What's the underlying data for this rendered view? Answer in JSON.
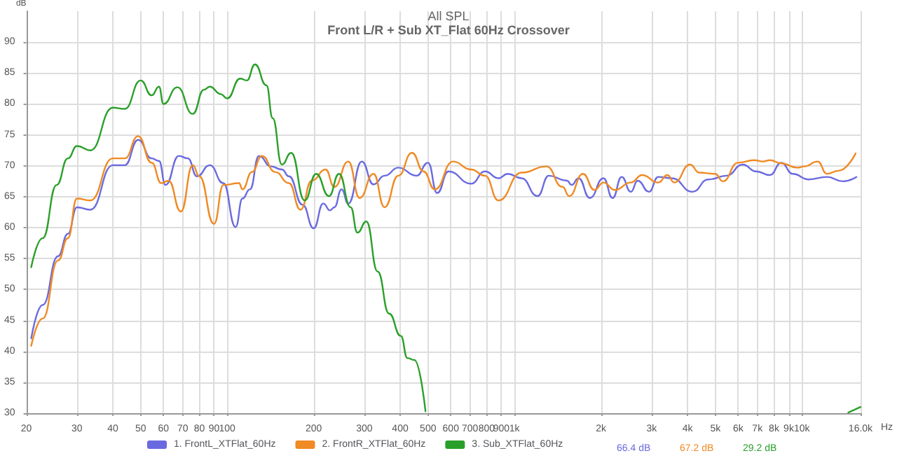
{
  "chart_data": {
    "type": "line",
    "title": "All SPL",
    "subtitle": "Front L/R + Sub XT_Flat 60Hz Crossover",
    "ylabel": "dB",
    "xlim": [
      20,
      16000
    ],
    "ylim": [
      30,
      95
    ],
    "log": "x",
    "grid": true,
    "legend": "bottom",
    "marker": "none",
    "line_style": "solid",
    "xticks": [
      20,
      30,
      40,
      50,
      60,
      70,
      80,
      90,
      100,
      200,
      300,
      400,
      500,
      600,
      700,
      800,
      900,
      {
        "value": 1000,
        "label": "1k"
      },
      {
        "value": 2000,
        "label": "2k"
      },
      {
        "value": 3000,
        "label": "3k"
      },
      {
        "value": 4000,
        "label": "4k"
      },
      {
        "value": 5000,
        "label": "5k"
      },
      {
        "value": 6000,
        "label": "6k"
      },
      {
        "value": 7000,
        "label": "7k"
      },
      {
        "value": 8000,
        "label": "8k"
      },
      {
        "value": 9000,
        "label": "9k"
      },
      {
        "value": 10000,
        "label": "10k"
      },
      {
        "value": 16000,
        "label": "16.0k"
      }
    ],
    "xlabel": "Hz",
    "yticks": [
      30,
      35,
      40,
      45,
      50,
      55,
      60,
      65,
      70,
      75,
      80,
      85,
      90
    ],
    "annotations": [
      "66.4 dB",
      "67.2 dB",
      "29.2 dB"
    ],
    "series": [
      {
        "name": "1. FrontL_XTFlat_60Hz",
        "color": "#6a6ae0",
        "x": [
          20.8,
          22.8,
          25.8,
          27.9,
          30,
          33.4,
          40,
          44,
          49,
          54.6,
          57.9,
          61,
          67.9,
          73,
          78.5,
          87,
          97,
          107,
          113,
          120,
          129,
          142,
          155,
          164,
          183,
          200,
          216,
          228,
          236,
          250,
          264,
          294,
          323,
          353,
          394,
          456,
          500,
          538,
          589,
          706,
          789,
          880,
          946,
          1057,
          1202,
          1316,
          1522,
          1580,
          1670,
          1828,
          2040,
          2194,
          2360,
          2540,
          2683,
          2938,
          3162,
          3530,
          4160,
          4727,
          5470,
          6220,
          6936,
          7742,
          8473,
          9290,
          10558,
          12220,
          13880,
          15480
        ],
        "values": [
          42.1,
          47.5,
          55.4,
          59.0,
          63.3,
          62.9,
          70.1,
          70.1,
          74.2,
          71.2,
          70.8,
          66.9,
          71.6,
          71.2,
          68.3,
          70.1,
          67.2,
          60.1,
          64.7,
          66.2,
          71.6,
          69.9,
          69.4,
          68.3,
          63.7,
          59.9,
          63.9,
          62.8,
          63.3,
          66.2,
          63.9,
          70.7,
          67.0,
          68.4,
          69.7,
          68.4,
          70.5,
          65.6,
          69.1,
          67.1,
          69.1,
          68.0,
          68.7,
          68.0,
          65.1,
          68.4,
          67.6,
          66.9,
          68.0,
          64.8,
          68.0,
          64.8,
          68.2,
          65.8,
          67.6,
          65.8,
          68.2,
          68.0,
          65.8,
          67.8,
          68.4,
          70.2,
          69.1,
          68.5,
          70.5,
          68.7,
          67.8,
          68.2,
          67.5,
          68.2
        ]
      },
      {
        "name": "2. FrontR_XTFlat_60Hz",
        "color": "#f08a24",
        "x": [
          20.8,
          22.8,
          25.8,
          27.9,
          30,
          33.4,
          40,
          44,
          49,
          54.6,
          59,
          62.5,
          69,
          75.9,
          80,
          90,
          97,
          110,
          113,
          122,
          132,
          147,
          164,
          180,
          197,
          220,
          236,
          264,
          289,
          323,
          353,
          394,
          440,
          482,
          528,
          611,
          706,
          789,
          880,
          1057,
          1291,
          1468,
          1550,
          1730,
          1897,
          2040,
          2234,
          2540,
          2780,
          3162,
          3404,
          3596,
          4083,
          4394,
          4990,
          5310,
          5992,
          6808,
          7328,
          7742,
          8473,
          9640,
          10186,
          11350,
          12220,
          13400,
          15380
        ],
        "values": [
          40.9,
          45.3,
          54.7,
          58.3,
          64.7,
          64.4,
          71.2,
          71.2,
          74.8,
          70.5,
          67.2,
          67.6,
          62.6,
          70.1,
          68.3,
          60.6,
          66.9,
          67.2,
          66.2,
          69.0,
          71.6,
          69.0,
          67.2,
          62.9,
          67.6,
          69.4,
          66.6,
          70.7,
          64.8,
          68.7,
          63.3,
          68.4,
          72.1,
          69.1,
          66.2,
          70.7,
          69.4,
          68.4,
          64.4,
          68.9,
          69.9,
          66.6,
          65.1,
          68.7,
          66.1,
          67.3,
          66.1,
          67.3,
          68.5,
          67.3,
          68.5,
          67.3,
          70.2,
          68.9,
          68.7,
          67.5,
          70.5,
          70.9,
          70.7,
          70.9,
          70.4,
          69.7,
          69.9,
          70.7,
          68.7,
          69.2,
          72.0
        ]
      },
      {
        "name": "3. Sub_XTFlat_60Hz",
        "color": "#2aa02a",
        "x": [
          20.8,
          22.8,
          25.5,
          27.9,
          30,
          33.4,
          40,
          44,
          50,
          54.6,
          57.9,
          60,
          67.1,
          75.9,
          83,
          87,
          95,
          100,
          111,
          117,
          125,
          137,
          144,
          155,
          167,
          186,
          204,
          226,
          245,
          269,
          284,
          305,
          334,
          366,
          402,
          424,
          448,
          490,
          5000,
          14500,
          16000
        ],
        "values": [
          53.6,
          58.3,
          66.9,
          71.2,
          73.2,
          72.5,
          79.4,
          79.2,
          83.8,
          81.4,
          82.8,
          80.0,
          82.7,
          78.4,
          82.3,
          82.8,
          81.6,
          80.9,
          84.1,
          83.8,
          86.4,
          83.0,
          77.7,
          70.2,
          72.1,
          64.4,
          68.7,
          65.1,
          68.7,
          63.3,
          59.2,
          61.0,
          52.9,
          46.1,
          42.5,
          38.9,
          38.6,
          30.3,
          null,
          30.1,
          31.0
        ]
      }
    ]
  }
}
